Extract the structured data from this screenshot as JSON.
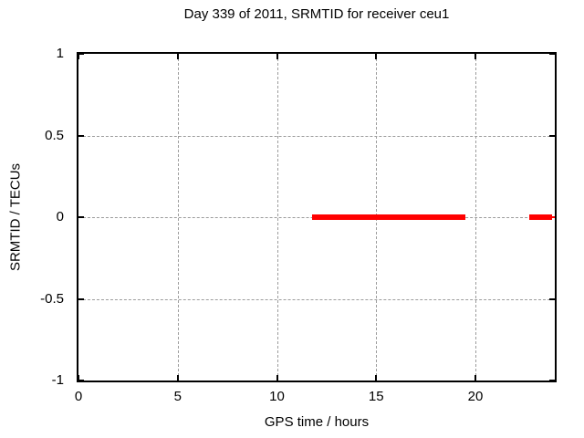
{
  "chart_data": {
    "type": "line",
    "title": "Day 339 of 2011, SRMTID for receiver ceu1",
    "xlabel": "GPS time / hours",
    "ylabel": "SRMTID / TECUs",
    "xlim": [
      0,
      24
    ],
    "ylim": [
      -1,
      1
    ],
    "xticks": [
      0,
      5,
      10,
      15,
      20
    ],
    "yticks": [
      1,
      0.5,
      0,
      -0.5,
      -1
    ],
    "grid": true,
    "legend": "none",
    "series": [
      {
        "name": "SRMTID",
        "color": "#ff0000",
        "segments": [
          {
            "x_start": 11.75,
            "x_end": 19.5,
            "y": 0,
            "linewidth": 6
          },
          {
            "x_start": 22.7,
            "x_end": 23.85,
            "y": 0,
            "linewidth": 6
          },
          {
            "x_start": 23.85,
            "x_end": 24.0,
            "y": 0,
            "linewidth": 2
          }
        ]
      }
    ],
    "colors": {
      "grid": "#9c9c9c",
      "border": "#000000",
      "text": "#000000",
      "background": "#ffffff"
    }
  }
}
